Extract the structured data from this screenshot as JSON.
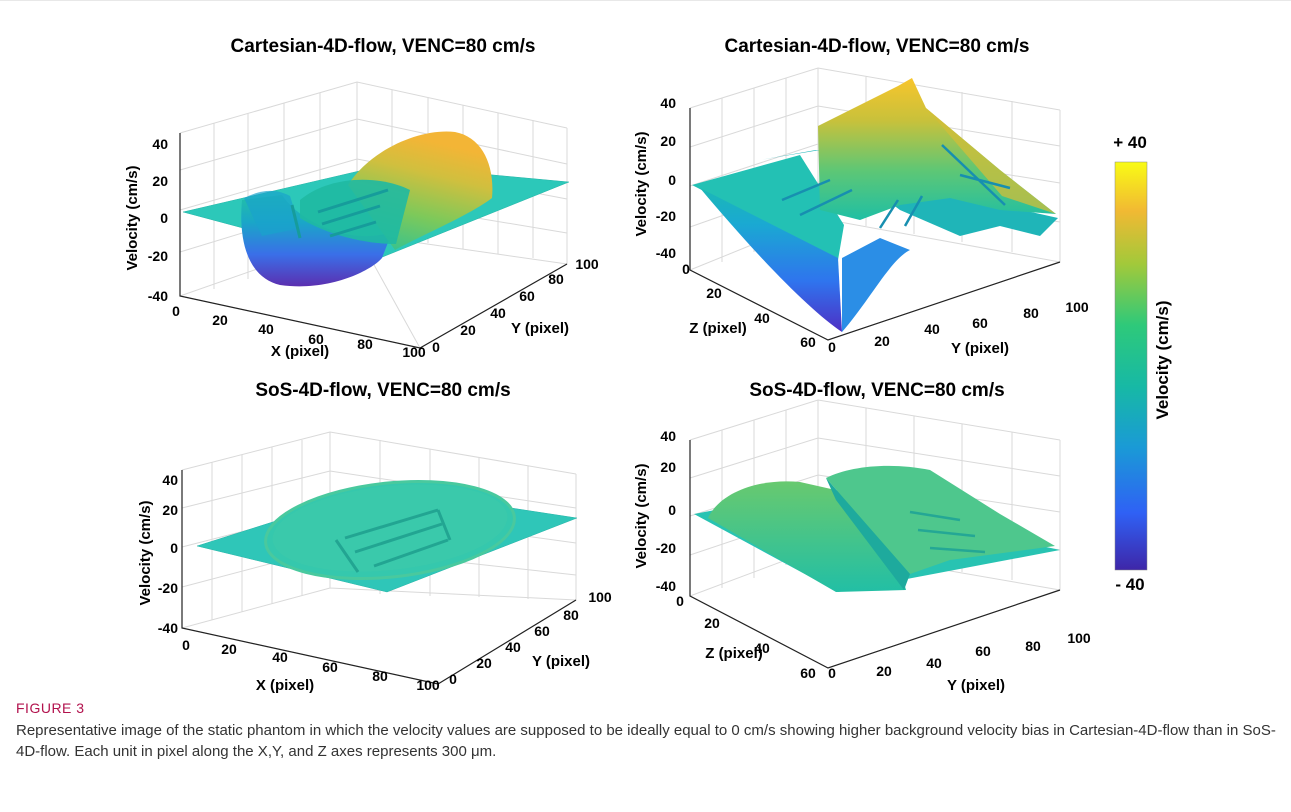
{
  "chart_data": [
    {
      "type": "surface3d",
      "title": "Cartesian-4D-flow, VENC=80 cm/s",
      "xlabel": "X (pixel)",
      "ylabel": "Y (pixel)",
      "zlabel": "Velocity (cm/s)",
      "x_ticks": [
        "0",
        "20",
        "40",
        "60",
        "80",
        "100"
      ],
      "y_ticks": [
        "0",
        "20",
        "40",
        "60",
        "80",
        "100"
      ],
      "z_ticks": [
        "40",
        "20",
        "0",
        "-20",
        "-40"
      ],
      "zlim": [
        -40,
        40
      ],
      "background_velocity": 0,
      "phantom_min_velocity": -40,
      "phantom_max_velocity": 28
    },
    {
      "type": "surface3d",
      "title": "Cartesian-4D-flow, VENC=80 cm/s",
      "xlabel": "Z (pixel)",
      "ylabel": "Y (pixel)",
      "zlabel": "Velocity (cm/s)",
      "x_ticks": [
        "0",
        "20",
        "40",
        "60"
      ],
      "y_ticks": [
        "0",
        "20",
        "40",
        "60",
        "80",
        "100"
      ],
      "z_ticks": [
        "40",
        "20",
        "0",
        "-20",
        "-40"
      ],
      "zlim": [
        -40,
        40
      ],
      "phantom_min_velocity": -40,
      "phantom_max_velocity": 40
    },
    {
      "type": "surface3d",
      "title": "SoS-4D-flow, VENC=80 cm/s",
      "xlabel": "X (pixel)",
      "ylabel": "Y (pixel)",
      "zlabel": "Velocity (cm/s)",
      "x_ticks": [
        "0",
        "20",
        "40",
        "60",
        "80",
        "100"
      ],
      "y_ticks": [
        "0",
        "20",
        "40",
        "60",
        "80",
        "100"
      ],
      "z_ticks": [
        "40",
        "20",
        "0",
        "-20",
        "-40"
      ],
      "zlim": [
        -40,
        40
      ],
      "background_velocity": 0,
      "phantom_min_velocity": 0,
      "phantom_max_velocity": 2
    },
    {
      "type": "surface3d",
      "title": "SoS-4D-flow, VENC=80 cm/s",
      "xlabel": "Z (pixel)",
      "ylabel": "Y (pixel)",
      "zlabel": "Velocity (cm/s)",
      "x_ticks": [
        "0",
        "20",
        "40",
        "60"
      ],
      "y_ticks": [
        "0",
        "20",
        "40",
        "60",
        "80",
        "100"
      ],
      "z_ticks": [
        "40",
        "20",
        "0",
        "-20",
        "-40"
      ],
      "zlim": [
        -40,
        40
      ],
      "phantom_min_velocity": -2,
      "phantom_max_velocity": 10
    }
  ],
  "colorbar": {
    "label": "Velocity (cm/s)",
    "max_label": "+ 40",
    "min_label": "- 40",
    "range": [
      -40,
      40
    ],
    "colormap": "parula",
    "colors": [
      "#3e26a8",
      "#2f61f5",
      "#1a9ad6",
      "#17b9a5",
      "#2ec97a",
      "#a2c93a",
      "#f1b933",
      "#f9fb15"
    ]
  },
  "caption": {
    "label": "FIGURE 3",
    "text": "Representative image of the static phantom in which the velocity values are supposed to be ideally equal to 0 cm/s showing higher background velocity bias in Cartesian-4D-flow than in SoS-4D-flow. Each unit in pixel along the X,Y, and Z axes represents 300 μm.",
    "label_color": "#b2124d"
  }
}
